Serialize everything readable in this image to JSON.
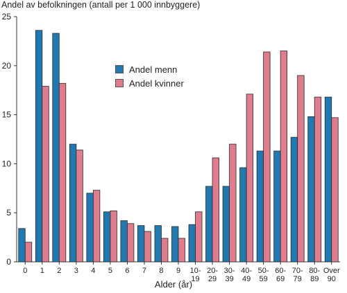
{
  "chart_data": {
    "type": "bar",
    "title": "",
    "ylabel": "Andel av befolkningen (antall per 1 000 innbyggere)",
    "xlabel": "Alder (år)",
    "ylim": [
      0,
      25
    ],
    "yticks": [
      "0",
      "5",
      "10",
      "15",
      "20",
      "25"
    ],
    "grid": false,
    "legend_position": "upper-center",
    "categories": [
      [
        "0"
      ],
      [
        "1"
      ],
      [
        "2"
      ],
      [
        "3"
      ],
      [
        "4"
      ],
      [
        "5"
      ],
      [
        "6"
      ],
      [
        "7"
      ],
      [
        "8"
      ],
      [
        "9"
      ],
      [
        "10-",
        "19"
      ],
      [
        "20-",
        "29"
      ],
      [
        "30-",
        "39"
      ],
      [
        "40-",
        "49"
      ],
      [
        "50-",
        "59"
      ],
      [
        "60-",
        "69"
      ],
      [
        "70-",
        "79"
      ],
      [
        "80-",
        "89"
      ],
      [
        "Over",
        "90"
      ]
    ],
    "series": [
      {
        "name": "Andel menn",
        "color": "#1f7ab3",
        "values": [
          3.4,
          23.6,
          23.3,
          12.0,
          7.0,
          5.1,
          4.2,
          3.7,
          3.7,
          3.6,
          3.8,
          7.7,
          7.7,
          9.6,
          11.3,
          11.3,
          12.7,
          14.8,
          16.8
        ]
      },
      {
        "name": "Andel kvinner",
        "color": "#e07c8c",
        "values": [
          2.0,
          17.9,
          18.2,
          11.4,
          7.3,
          5.2,
          3.9,
          3.1,
          2.4,
          2.4,
          5.1,
          10.6,
          12.0,
          17.1,
          21.4,
          21.5,
          19.0,
          16.8,
          14.7
        ]
      }
    ]
  }
}
